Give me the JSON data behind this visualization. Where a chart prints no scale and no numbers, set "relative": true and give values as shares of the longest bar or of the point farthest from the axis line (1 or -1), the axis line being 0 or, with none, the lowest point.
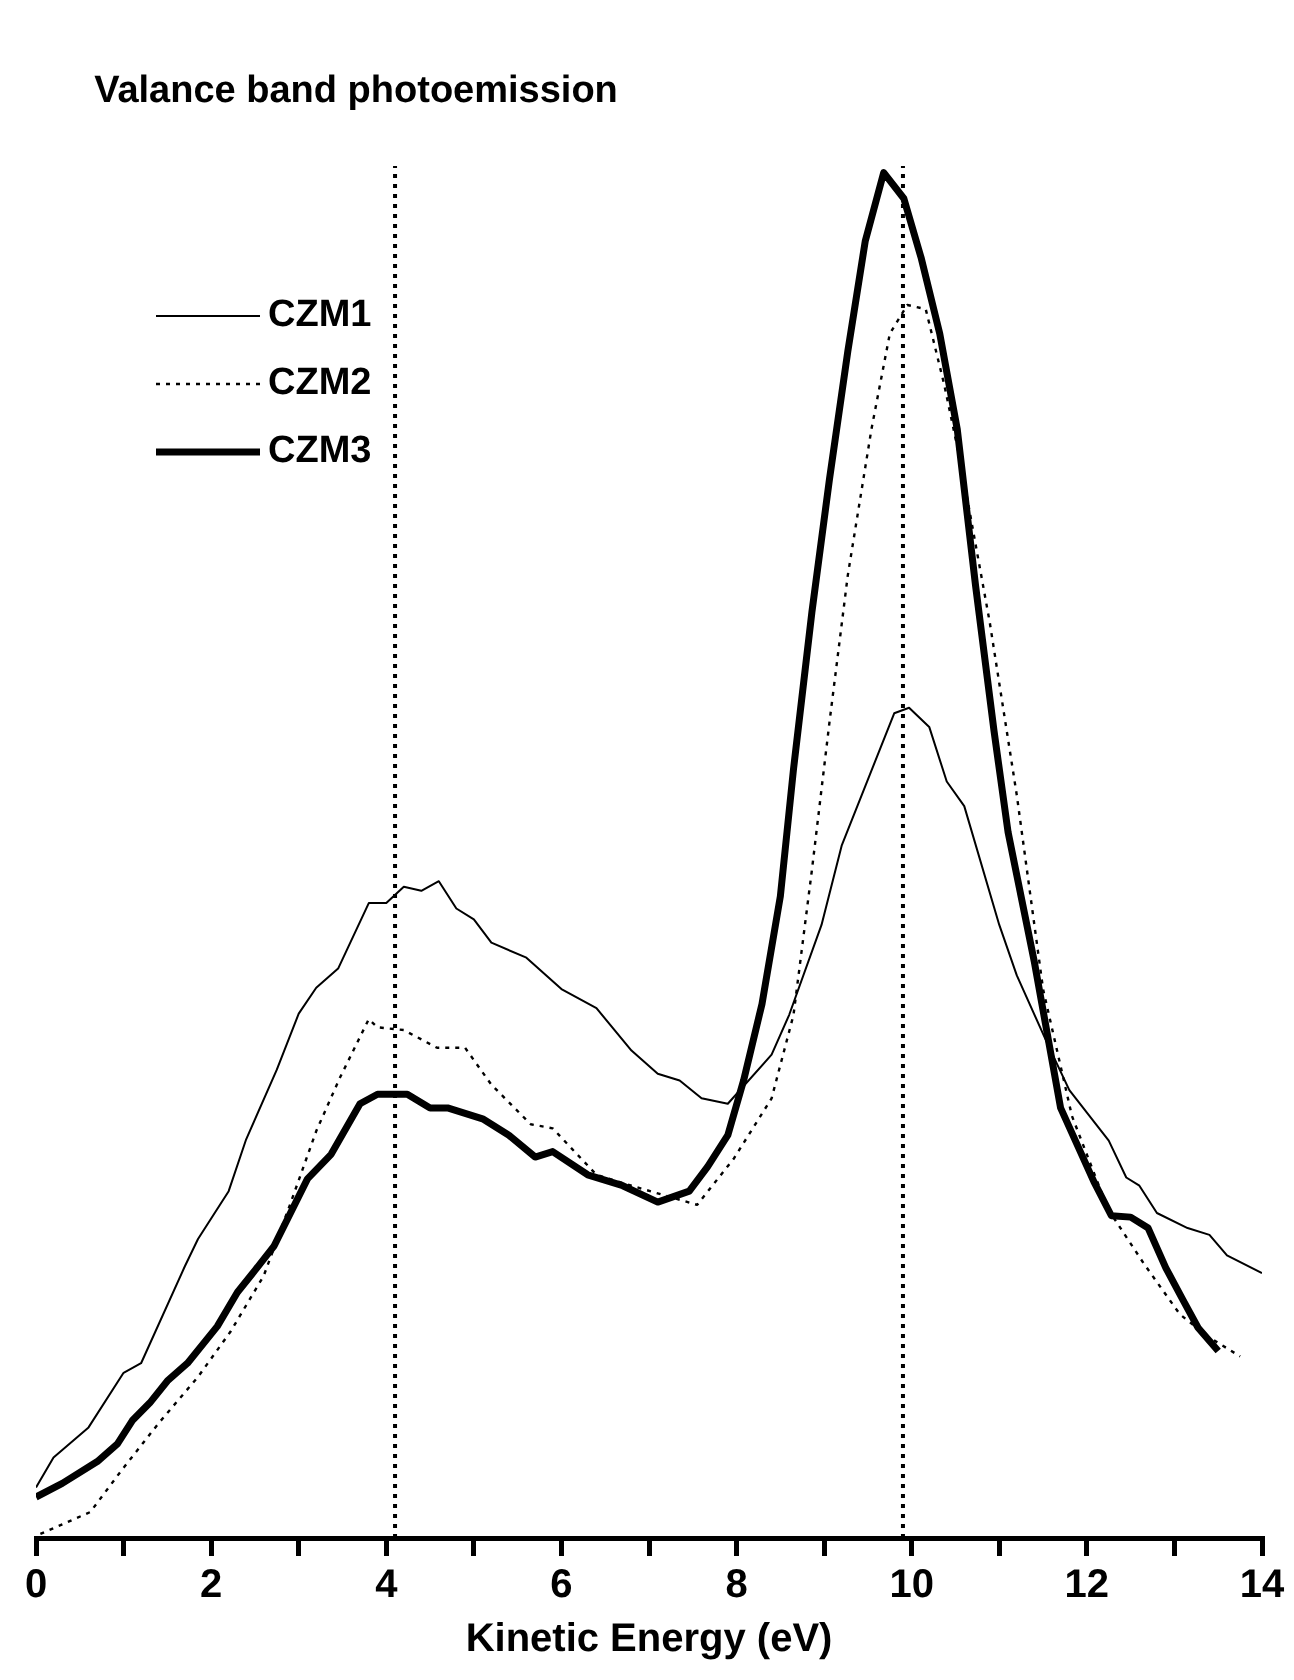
{
  "chart_data": {
    "type": "line",
    "title": "Valance band photoemission",
    "xlabel": "Kinetic Energy (eV)",
    "relative": true,
    "legend": "top left",
    "grid": false,
    "xlim": [
      0,
      14
    ],
    "xticks": [
      0,
      {
        "value": 1,
        "label": null
      },
      2,
      {
        "value": 3,
        "label": null
      },
      4,
      {
        "value": 5,
        "label": null
      },
      6,
      {
        "value": 7,
        "label": null
      },
      8,
      {
        "value": 9,
        "label": null
      },
      10,
      {
        "value": 11,
        "label": null
      },
      12,
      {
        "value": 13,
        "label": null
      },
      14
    ],
    "ref_lines": [
      {
        "axis": "x",
        "value": 4.1,
        "line_style": "dotted",
        "color": "#000000"
      },
      {
        "axis": "x",
        "value": 9.9,
        "line_style": "dotted",
        "color": "#000000"
      }
    ],
    "series": [
      {
        "name": "CZM1",
        "color": "#000000",
        "line_style": "solid",
        "x": [
          0,
          0.2,
          0.6,
          1.0,
          1.2,
          1.7,
          1.85,
          2.2,
          2.4,
          2.75,
          3.0,
          3.2,
          3.45,
          3.8,
          4.0,
          4.2,
          4.4,
          4.6,
          4.8,
          5.0,
          5.2,
          5.6,
          6.0,
          6.4,
          6.8,
          7.1,
          7.35,
          7.6,
          7.9,
          8.4,
          8.6,
          8.97,
          9.2,
          9.8,
          9.97,
          10.2,
          10.4,
          10.6,
          11.0,
          11.2,
          11.55,
          11.8,
          12.25,
          12.45,
          12.6,
          12.8,
          13.15,
          13.4,
          13.6,
          14.0
        ],
        "values": [
          0.037,
          0.059,
          0.081,
          0.121,
          0.128,
          0.199,
          0.219,
          0.254,
          0.292,
          0.343,
          0.384,
          0.403,
          0.417,
          0.465,
          0.465,
          0.477,
          0.474,
          0.481,
          0.461,
          0.453,
          0.436,
          0.425,
          0.402,
          0.388,
          0.357,
          0.34,
          0.335,
          0.322,
          0.318,
          0.354,
          0.383,
          0.449,
          0.507,
          0.604,
          0.608,
          0.594,
          0.554,
          0.536,
          0.449,
          0.412,
          0.362,
          0.328,
          0.291,
          0.264,
          0.258,
          0.238,
          0.227,
          0.222,
          0.207,
          0.194
        ]
      },
      {
        "name": "CZM2",
        "color": "#000000",
        "line_style": "dotted",
        "x": [
          0.05,
          0.3,
          0.62,
          0.97,
          1.4,
          1.85,
          2.22,
          2.6,
          2.9,
          3.2,
          3.47,
          3.8,
          3.9,
          4.2,
          4.58,
          4.9,
          5.2,
          5.65,
          5.9,
          6.4,
          6.8,
          7.55,
          7.97,
          8.4,
          8.65,
          8.86,
          9.06,
          9.27,
          9.54,
          9.75,
          9.95,
          10.16,
          10.37,
          10.57,
          10.89,
          11.2,
          11.5,
          11.83,
          12.24,
          12.65,
          13.06,
          13.37,
          13.75
        ],
        "values": [
          0.003,
          0.01,
          0.019,
          0.049,
          0.084,
          0.118,
          0.151,
          0.192,
          0.244,
          0.298,
          0.337,
          0.38,
          0.374,
          0.372,
          0.359,
          0.359,
          0.332,
          0.303,
          0.3,
          0.266,
          0.258,
          0.244,
          0.278,
          0.322,
          0.383,
          0.489,
          0.597,
          0.705,
          0.812,
          0.882,
          0.903,
          0.9,
          0.845,
          0.784,
          0.671,
          0.544,
          0.402,
          0.309,
          0.241,
          0.201,
          0.164,
          0.148,
          0.133
        ]
      },
      {
        "name": "CZM3",
        "color": "#000000",
        "line_style": "solid",
        "x": [
          0,
          0.3,
          0.7,
          0.93,
          1.1,
          1.3,
          1.5,
          1.73,
          2.07,
          2.3,
          2.5,
          2.72,
          3.1,
          3.37,
          3.7,
          3.9,
          4.24,
          4.5,
          4.7,
          5.1,
          5.4,
          5.7,
          5.9,
          6.3,
          6.7,
          7.1,
          7.46,
          7.67,
          7.9,
          8.08,
          8.29,
          8.5,
          8.65,
          8.86,
          9.06,
          9.27,
          9.47,
          9.68,
          9.91,
          10.11,
          10.32,
          10.52,
          10.73,
          10.94,
          11.1,
          11.4,
          11.7,
          12.08,
          12.28,
          12.5,
          12.7,
          12.9,
          13.1,
          13.27,
          13.5
        ],
        "values": [
          0.03,
          0.04,
          0.056,
          0.069,
          0.086,
          0.099,
          0.115,
          0.128,
          0.155,
          0.18,
          0.196,
          0.214,
          0.263,
          0.281,
          0.318,
          0.325,
          0.325,
          0.315,
          0.315,
          0.307,
          0.295,
          0.279,
          0.283,
          0.266,
          0.258,
          0.246,
          0.254,
          0.272,
          0.295,
          0.335,
          0.391,
          0.47,
          0.563,
          0.678,
          0.775,
          0.869,
          0.95,
          1,
          0.981,
          0.937,
          0.882,
          0.812,
          0.697,
          0.591,
          0.517,
          0.422,
          0.315,
          0.261,
          0.236,
          0.235,
          0.227,
          0.198,
          0.174,
          0.154,
          0.137
        ]
      }
    ]
  }
}
